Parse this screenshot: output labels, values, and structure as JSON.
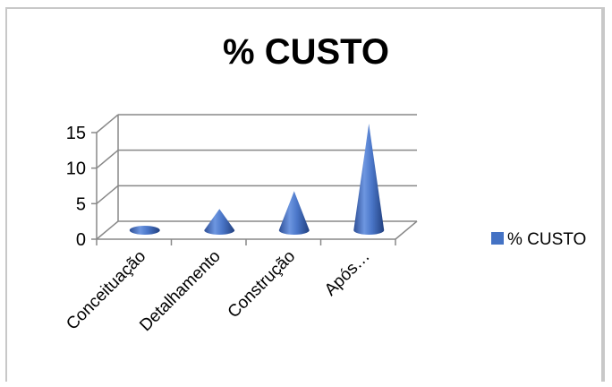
{
  "chart_data": {
    "type": "bar",
    "title": "% CUSTO",
    "categories": [
      "Conceituação",
      "Detalhamento",
      "Construção",
      "Após…"
    ],
    "series": [
      {
        "name": "% CUSTO",
        "values": [
          0.5,
          3,
          5.5,
          15
        ],
        "color": "#4472C4"
      }
    ],
    "ylim": [
      0,
      15
    ],
    "yticks": [
      0,
      5,
      10,
      15
    ],
    "grid": true,
    "legend_position": "right",
    "bar_shape": "cone-3d"
  }
}
